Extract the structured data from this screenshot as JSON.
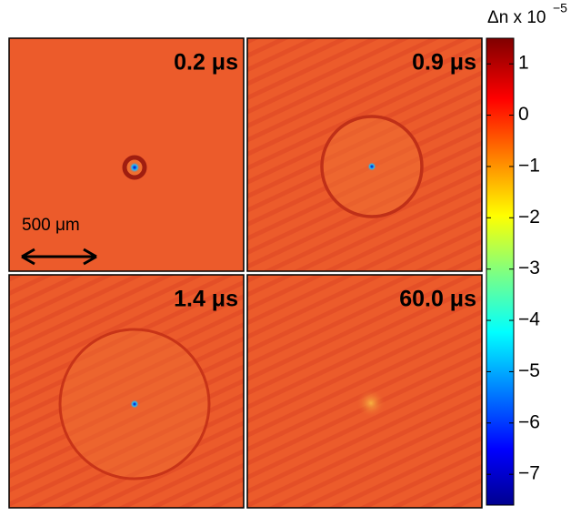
{
  "figure": {
    "panels": [
      {
        "label": "0.2 μs"
      },
      {
        "label": "0.9 μs"
      },
      {
        "label": "1.4 μs"
      },
      {
        "label": "60.0 μs"
      }
    ],
    "scale_bar": {
      "label": "500 μm"
    },
    "colorbar": {
      "label": "Δn x 10",
      "exponent": "−5",
      "lim": [
        -7.6,
        1.5
      ],
      "ticks": [
        1,
        0,
        {
          "value": -1,
          "label": "−1"
        },
        {
          "value": -2,
          "label": "−2"
        },
        {
          "value": -3,
          "label": "−3"
        },
        {
          "value": -4,
          "label": "−4"
        },
        {
          "value": -5,
          "label": "−5"
        },
        {
          "value": -6,
          "label": "−6"
        },
        {
          "value": -7,
          "label": "−7"
        }
      ]
    }
  }
}
